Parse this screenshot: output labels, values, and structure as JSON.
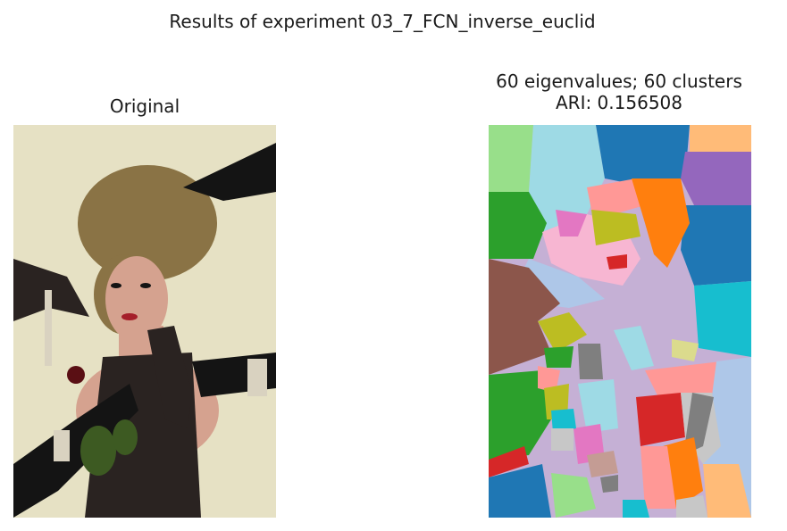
{
  "figure": {
    "suptitle": "Results of experiment 03_7_FCN_inverse_euclid"
  },
  "panels": [
    {
      "title": "Original"
    },
    {
      "title_line1": "60 eigenvalues; 60 clusters",
      "title_line2": "ARI: 0.156508"
    }
  ],
  "photo_colors": {
    "background": "#e6e1c4",
    "hair": "#8a7345",
    "skin": "#d5a28f",
    "glove": "#141414",
    "lace": "#2a2321",
    "rose": "#5a0f14",
    "leaf": "#3d5a22",
    "pearl": "#d9d2c0",
    "lips": "#a51f2a"
  },
  "segment_colors": {
    "light_green": "#98df8a",
    "cyan": "#9edae5",
    "blue": "#1f77b4",
    "orange_light": "#ffbb78",
    "purple": "#9467bd",
    "green": "#2ca02c",
    "lavender": "#c5b0d5",
    "pink": "#f7b6d2",
    "salmon": "#ff9896",
    "orange": "#ff7f0e",
    "olive": "#bcbd22",
    "pink_dark": "#e377c2",
    "red": "#d62728",
    "light_blue": "#aec7e8",
    "brown": "#8c564b",
    "teal": "#17becf",
    "gray": "#7f7f7f",
    "light_gray": "#c7c7c7",
    "khaki": "#dbdb8d",
    "tan": "#c49c94"
  }
}
